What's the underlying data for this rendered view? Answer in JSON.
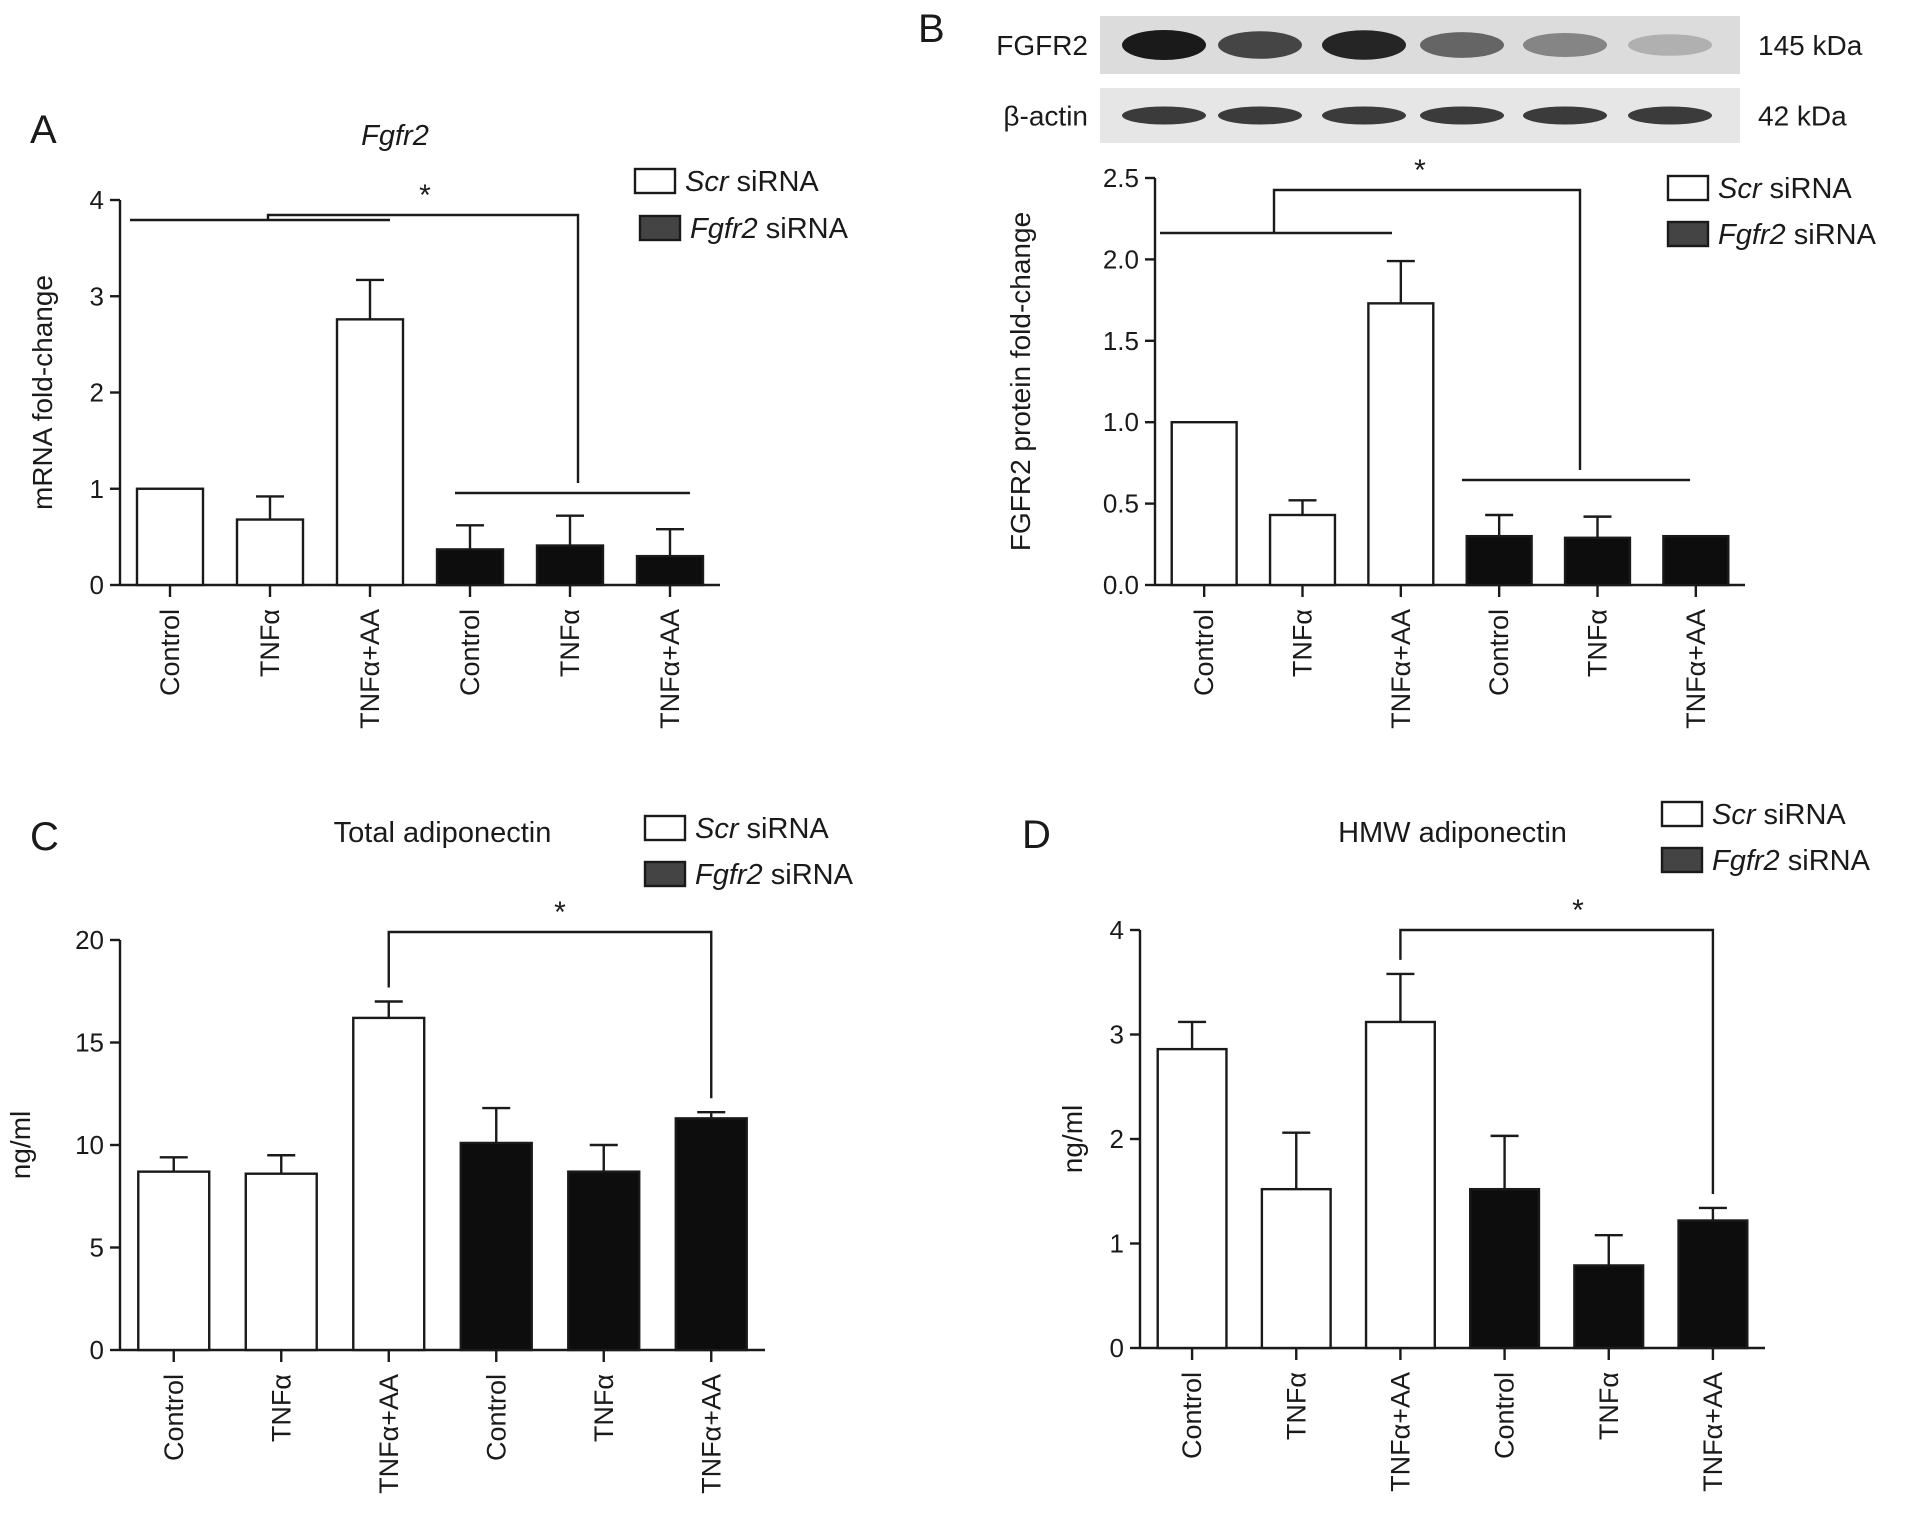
{
  "legend": {
    "scr": {
      "italic": "Scr",
      "rest": " siRNA",
      "fill": "#ffffff"
    },
    "fgfr2": {
      "italic": "Fgfr2",
      "rest": " siRNA",
      "fill": "#444444"
    }
  },
  "blot": {
    "rows": [
      {
        "label": "FGFR2",
        "size": "145 kDa",
        "intensity": [
          1.0,
          0.8,
          0.95,
          0.65,
          0.5,
          0.3
        ]
      },
      {
        "label": "β-actin",
        "size": "42 kDa",
        "intensity": [
          0.85,
          0.85,
          0.85,
          0.85,
          0.85,
          0.85
        ]
      }
    ]
  },
  "chart_data": [
    {
      "panel": "A",
      "type": "bar",
      "title": "Fgfr2",
      "title_italic": true,
      "ylabel": "mRNA fold-change",
      "ylim": [
        0,
        4
      ],
      "yticks": [
        "0",
        "1",
        "2",
        "3",
        "4"
      ],
      "categories": [
        "Control",
        "TNFα",
        "TNFα+AA",
        "Control",
        "TNFα",
        "TNFα+AA"
      ],
      "groups": [
        "scr",
        "scr",
        "scr",
        "fgfr2",
        "fgfr2",
        "fgfr2"
      ],
      "values": [
        1.0,
        0.68,
        2.76,
        0.37,
        0.41,
        0.3
      ],
      "errors": [
        0,
        0.24,
        0.41,
        0.25,
        0.31,
        0.28
      ],
      "significance": "*"
    },
    {
      "panel": "B",
      "type": "bar",
      "title": "",
      "ylabel": "FGFR2 protein fold-change",
      "ylim": [
        0,
        2.5
      ],
      "yticks": [
        "0.0",
        "0.5",
        "1.0",
        "1.5",
        "2.0",
        "2.5"
      ],
      "categories": [
        "Control",
        "TNFα",
        "TNFα+AA",
        "Control",
        "TNFα",
        "TNFα+AA"
      ],
      "groups": [
        "scr",
        "scr",
        "scr",
        "fgfr2",
        "fgfr2",
        "fgfr2"
      ],
      "values": [
        1.0,
        0.43,
        1.73,
        0.3,
        0.29,
        0.3
      ],
      "errors": [
        0,
        0.09,
        0.26,
        0.13,
        0.13,
        0
      ],
      "significance": "*"
    },
    {
      "panel": "C",
      "type": "bar",
      "title": "Total adiponectin",
      "ylabel": "ng/ml",
      "ylim": [
        0,
        20
      ],
      "yticks": [
        "0",
        "5",
        "10",
        "15",
        "20"
      ],
      "categories": [
        "Control",
        "TNFα",
        "TNFα+AA",
        "Control",
        "TNFα",
        "TNFα+AA"
      ],
      "groups": [
        "scr",
        "scr",
        "scr",
        "fgfr2",
        "fgfr2",
        "fgfr2"
      ],
      "values": [
        8.7,
        8.6,
        16.2,
        10.1,
        8.7,
        11.3
      ],
      "errors": [
        0.7,
        0.9,
        0.8,
        1.7,
        1.3,
        0.3
      ],
      "significance": "*"
    },
    {
      "panel": "D",
      "type": "bar",
      "title": "HMW adiponectin",
      "ylabel": "ng/ml",
      "ylim": [
        0,
        4
      ],
      "yticks": [
        "0",
        "1",
        "2",
        "3",
        "4"
      ],
      "categories": [
        "Control",
        "TNFα",
        "TNFα+AA",
        "Control",
        "TNFα",
        "TNFα+AA"
      ],
      "groups": [
        "scr",
        "scr",
        "scr",
        "fgfr2",
        "fgfr2",
        "fgfr2"
      ],
      "values": [
        2.86,
        1.52,
        3.12,
        1.52,
        0.79,
        1.22
      ],
      "errors": [
        0.26,
        0.54,
        0.46,
        0.51,
        0.29,
        0.12
      ],
      "significance": "*"
    }
  ]
}
